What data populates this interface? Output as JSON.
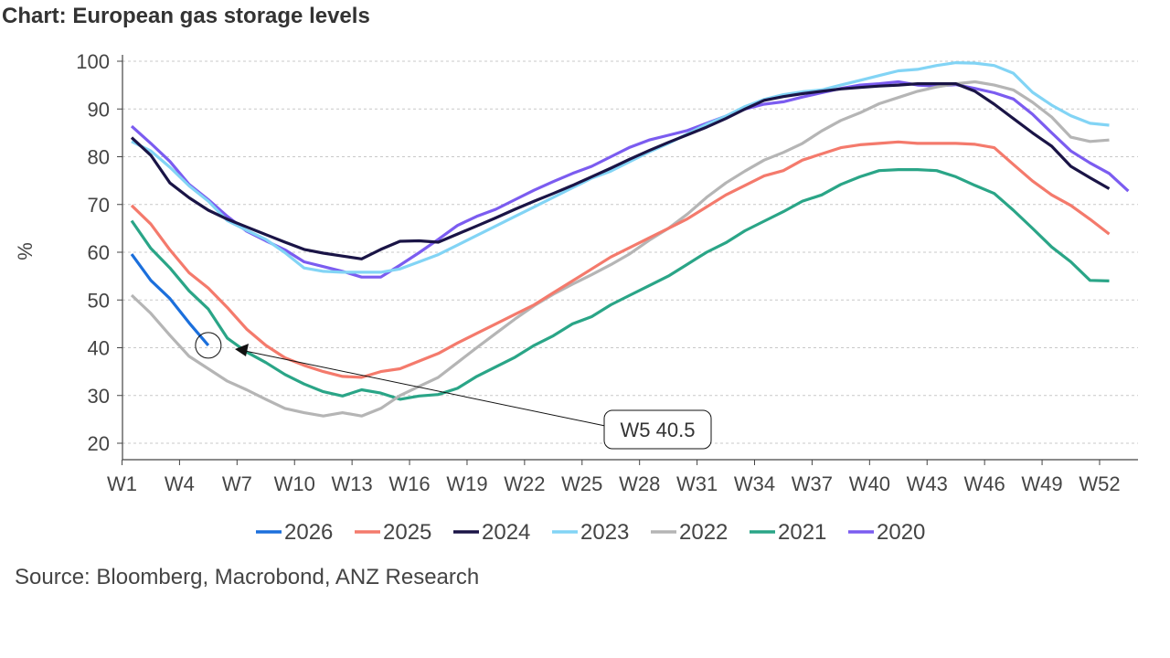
{
  "title": "Chart: European gas storage levels",
  "source": "Source: Bloomberg, Macrobond, ANZ Research",
  "chart_data": {
    "type": "line",
    "title": "Chart: European gas storage levels",
    "xlabel": "",
    "ylabel": "%",
    "ylim": [
      20,
      100
    ],
    "yticks": [
      20,
      30,
      40,
      50,
      60,
      70,
      80,
      90,
      100
    ],
    "xticks": [
      "W1",
      "W4",
      "W7",
      "W10",
      "W13",
      "W16",
      "W19",
      "W22",
      "W25",
      "W28",
      "W31",
      "W34",
      "W37",
      "W40",
      "W43",
      "W46",
      "W49",
      "W52"
    ],
    "xtick_weeks": [
      1,
      4,
      7,
      10,
      13,
      16,
      19,
      22,
      25,
      28,
      31,
      34,
      37,
      40,
      43,
      46,
      49,
      52
    ],
    "grid": "horizontal dashed",
    "legend": "bottom",
    "annotation": {
      "label": "W5 40.5",
      "week": 5,
      "value": 40.5
    },
    "series": [
      {
        "name": "2026",
        "color": "#1b6fdc",
        "values": [
          59.6,
          54.1,
          50.3,
          45.2,
          40.5
        ]
      },
      {
        "name": "2025",
        "color": "#f47a6c",
        "values": [
          69.8,
          65.9,
          60.5,
          55.7,
          52.5,
          48.4,
          43.9,
          40.5,
          37.9,
          36.3,
          35,
          34,
          33.8,
          35,
          35.6,
          37.2,
          38.8,
          41,
          43,
          45,
          47,
          49,
          51.5,
          54,
          56.5,
          59,
          61,
          63,
          65,
          67,
          69.5,
          72,
          74,
          76,
          77.1,
          79.3,
          80.6,
          81.9,
          82.5,
          82.8,
          83.1,
          82.8,
          82.8,
          82.8,
          82.6,
          81.9,
          78.4,
          74.9,
          72,
          69.8,
          66.9,
          63.8
        ]
      },
      {
        "name": "2024",
        "color": "#1a1446",
        "values": [
          84,
          80.3,
          74.5,
          71.4,
          68.8,
          66.9,
          65.3,
          63.7,
          62.1,
          60.6,
          59.8,
          59.2,
          58.6,
          60.6,
          62.3,
          62.4,
          62.1,
          63.8,
          65.5,
          67.2,
          69,
          70.7,
          72.3,
          74,
          75.8,
          77.6,
          79.5,
          81.3,
          83,
          84.6,
          86.2,
          88,
          90,
          91.8,
          92.6,
          93.2,
          93.7,
          94.2,
          94.5,
          94.8,
          95,
          95.3,
          95.3,
          95.3,
          93.7,
          91,
          88,
          85,
          82.2,
          78,
          75.6,
          73.3
        ]
      },
      {
        "name": "2023",
        "color": "#82d4f5",
        "values": [
          83.2,
          81.2,
          77.8,
          73.9,
          70.7,
          66.6,
          64.6,
          62.7,
          59.9,
          56.7,
          56,
          55.8,
          55.8,
          55.8,
          56.5,
          58,
          59.5,
          61.5,
          63.5,
          65.5,
          67.5,
          69.5,
          71.5,
          73.5,
          75.5,
          77,
          79,
          81,
          82.8,
          84.8,
          86.8,
          88.5,
          90.5,
          92,
          93,
          93.6,
          94,
          95,
          96,
          97,
          98,
          98.3,
          99.1,
          99.7,
          99.6,
          99.1,
          97.5,
          93.5,
          90.8,
          88.6,
          87,
          86.6
        ]
      },
      {
        "name": "2022",
        "color": "#b5b5b5",
        "values": [
          51,
          47.2,
          42.6,
          38.2,
          35.6,
          33,
          31.2,
          29.2,
          27.3,
          26.4,
          25.7,
          26.4,
          25.7,
          27.3,
          30,
          31.9,
          33.8,
          36.9,
          40,
          43,
          46,
          48.8,
          51.2,
          53.3,
          55.3,
          57.4,
          59.7,
          62.5,
          65,
          68,
          71.5,
          74.5,
          77,
          79.3,
          80.9,
          82.8,
          85.4,
          87.6,
          89.2,
          91.1,
          92.4,
          93.7,
          94.6,
          95.3,
          95.7,
          95,
          94,
          91.4,
          88.3,
          84.1,
          83.2,
          83.5
        ]
      },
      {
        "name": "2021",
        "color": "#2aa587",
        "values": [
          66.6,
          60.8,
          56.7,
          51.9,
          48.1,
          42,
          39.1,
          36.9,
          34.4,
          32.4,
          30.8,
          29.9,
          31.2,
          30.5,
          29.2,
          29.9,
          30.2,
          31.5,
          34,
          36,
          38,
          40.5,
          42.5,
          45,
          46.5,
          49,
          51,
          53,
          55,
          57.5,
          60,
          62,
          64.5,
          66.5,
          68.5,
          70.7,
          72,
          74.2,
          75.8,
          77.1,
          77.3,
          77.3,
          77.1,
          75.8,
          74,
          72.3,
          68.8,
          65,
          61.1,
          58,
          54.1,
          54
        ]
      },
      {
        "name": "2020",
        "color": "#7b5cf0",
        "values": [
          86.4,
          82.8,
          79,
          74.2,
          71,
          67.5,
          64.4,
          62.4,
          60.5,
          58,
          57,
          56,
          54.8,
          54.8,
          57.3,
          59.9,
          62.7,
          65.6,
          67.5,
          69,
          71,
          73,
          74.8,
          76.5,
          78,
          80,
          82,
          83.5,
          84.5,
          85.5,
          87,
          88.5,
          90,
          91,
          91.5,
          92.5,
          93.4,
          94.3,
          95,
          95.3,
          95.7,
          95,
          94.8,
          95.1,
          94.3,
          93.4,
          92.1,
          88.9,
          85,
          81.2,
          78.7,
          76.5,
          72.8
        ]
      }
    ]
  }
}
